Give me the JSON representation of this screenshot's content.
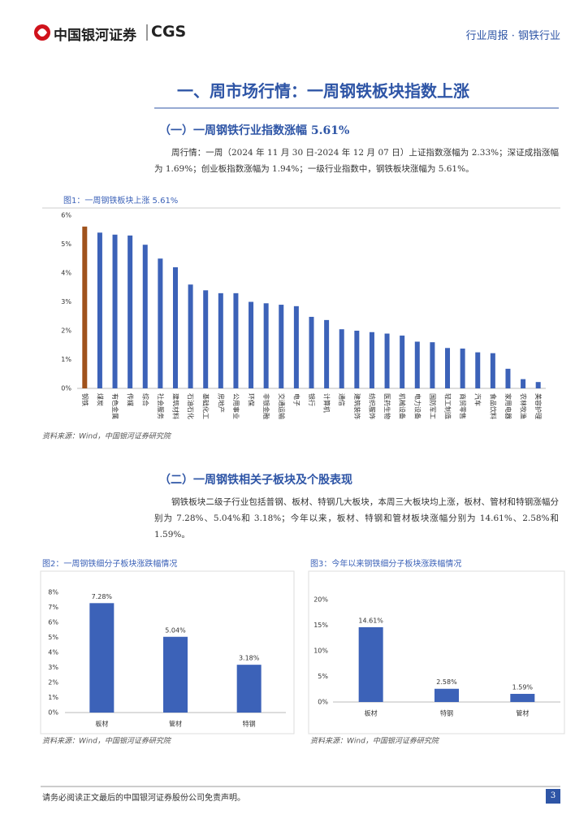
{
  "header": {
    "logo": "中国银河证券",
    "logo_en": "CGS",
    "report_type": "行业周报 · 钢铁行业"
  },
  "section_title": "一、周市场行情：一周钢铁板块指数上涨",
  "subsections": [
    {
      "title": "（一）一周钢铁行业指数涨幅 5.61%",
      "paragraph": "周行情：一周（2024 年 11 月 30 日-2024 年 12 月 07 日）上证指数涨幅为 2.33%；深证成指涨幅为 1.69%；创业板指数涨幅为 1.94%；一级行业指数中，钢铁板块涨幅为 5.61%。"
    },
    {
      "title": "（二）一周钢铁相关子板块及个股表现",
      "paragraph": "钢铁板块二级子行业包括普钢、板材、特钢几大板块，本周三大板块均上涨，板材、管材和特钢涨幅分别为 7.28%、5.04%和 3.18%；今年以来，板材、特钢和管材板块涨幅分别为 14.61%、2.58%和 1.59%。"
    }
  ],
  "chart_data": [
    {
      "type": "bar",
      "title": "图1：一周钢铁板块上涨 5.61%",
      "source": "资料来源：Wind，中国银河证券研究院",
      "categories": [
        "钢铁",
        "煤炭",
        "有色金属",
        "传媒",
        "综合",
        "社会服务",
        "建筑材料",
        "石油石化",
        "基础化工",
        "房地产",
        "公用事业",
        "环保",
        "非银金融",
        "交通运输",
        "电子",
        "银行",
        "计算机",
        "通信",
        "建筑装饰",
        "纺织服饰",
        "医药生物",
        "机械设备",
        "电力设备",
        "国防军工",
        "轻工制造",
        "商贸零售",
        "汽车",
        "食品饮料",
        "家用电器",
        "农林牧渔",
        "美容护理"
      ],
      "values": [
        5.61,
        5.4,
        5.33,
        5.3,
        4.98,
        4.5,
        4.2,
        3.6,
        3.4,
        3.3,
        3.3,
        3.0,
        2.95,
        2.9,
        2.85,
        2.48,
        2.37,
        2.05,
        2.0,
        1.95,
        1.9,
        1.83,
        1.62,
        1.6,
        1.4,
        1.38,
        1.25,
        1.22,
        0.68,
        0.32,
        0.22
      ],
      "colors": [
        "#a0521c",
        "#3c62b8",
        "#3c62b8",
        "#3c62b8",
        "#3c62b8",
        "#3c62b8",
        "#3c62b8",
        "#3c62b8",
        "#3c62b8",
        "#3c62b8",
        "#3c62b8",
        "#3c62b8",
        "#3c62b8",
        "#3c62b8",
        "#3c62b8",
        "#3c62b8",
        "#3c62b8",
        "#3c62b8",
        "#3c62b8",
        "#3c62b8",
        "#3c62b8",
        "#3c62b8",
        "#3c62b8",
        "#3c62b8",
        "#3c62b8",
        "#3c62b8",
        "#3c62b8",
        "#3c62b8",
        "#3c62b8",
        "#3c62b8",
        "#3c62b8"
      ],
      "ylim": [
        0,
        6
      ],
      "yticks": [
        {
          "value": 0,
          "label": "0%"
        },
        {
          "value": 1,
          "label": "1%"
        },
        {
          "value": 2,
          "label": "2%"
        },
        {
          "value": 3,
          "label": "3%"
        },
        {
          "value": 4,
          "label": "4%"
        },
        {
          "value": 5,
          "label": "5%"
        },
        {
          "value": 6,
          "label": "6%"
        }
      ]
    },
    {
      "type": "bar",
      "title": "图2：一周钢铁细分子板块涨跌幅情况",
      "source": "资料来源：Wind，中国银河证券研究院",
      "categories": [
        "板材",
        "管材",
        "特钢"
      ],
      "values": [
        7.28,
        5.04,
        3.18
      ],
      "value_labels": [
        "7.28%",
        "5.04%",
        "3.18%"
      ],
      "colors": [
        "#3c62b8",
        "#3c62b8",
        "#3c62b8"
      ],
      "ylim": [
        0,
        8
      ],
      "yticks": [
        {
          "value": 0,
          "label": "0%"
        },
        {
          "value": 1,
          "label": "1%"
        },
        {
          "value": 2,
          "label": "2%"
        },
        {
          "value": 3,
          "label": "3%"
        },
        {
          "value": 4,
          "label": "4%"
        },
        {
          "value": 5,
          "label": "5%"
        },
        {
          "value": 6,
          "label": "6%"
        },
        {
          "value": 7,
          "label": "7%"
        },
        {
          "value": 8,
          "label": "8%"
        }
      ]
    },
    {
      "type": "bar",
      "title": "图3：今年以来钢铁细分子板块涨跌幅情况",
      "source": "资料来源：Wind，中国银河证券研究院",
      "categories": [
        "板材",
        "特钢",
        "管材"
      ],
      "values": [
        14.61,
        2.58,
        1.59
      ],
      "value_labels": [
        "14.61%",
        "2.58%",
        "1.59%"
      ],
      "colors": [
        "#3c62b8",
        "#3c62b8",
        "#3c62b8"
      ],
      "ylim": [
        0,
        20
      ],
      "yticks": [
        {
          "value": 0,
          "label": "0%"
        },
        {
          "value": 5,
          "label": "5%"
        },
        {
          "value": 10,
          "label": "10%"
        },
        {
          "value": 15,
          "label": "15%"
        },
        {
          "value": 20,
          "label": "20%"
        }
      ]
    }
  ],
  "footer": {
    "disclaimer": "请务必阅读正文最后的中国银河证券股份公司免责声明。",
    "page": "3"
  }
}
